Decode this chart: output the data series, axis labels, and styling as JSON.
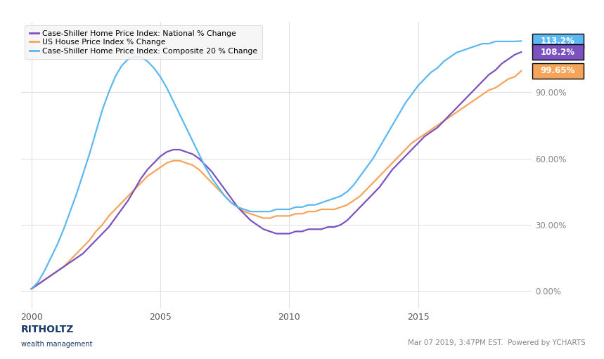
{
  "legend_entries": [
    "Case-Shiller Home Price Index: National % Change",
    "US House Price Index % Change",
    "Case-Shiller Home Price Index: Composite 20 % Change"
  ],
  "line_colors": [
    "#7B52BF",
    "#F5A55A",
    "#5BB8F0"
  ],
  "end_labels": [
    "113.2%",
    "108.2%",
    "99.65%"
  ],
  "end_label_colors": [
    "#5BB8F0",
    "#7B52BF",
    "#F5A55A"
  ],
  "ytick_labels": [
    "0.00%",
    "30.00%",
    "60.00%",
    "90.00%"
  ],
  "ytick_values": [
    0,
    30,
    60,
    90
  ],
  "xlim": [
    1999.6,
    2019.4
  ],
  "ylim": [
    -8,
    122
  ],
  "background_color": "#ffffff",
  "grid_color": "#e0e0e0",
  "footer_right": "Mar 07 2019, 3:47PM EST.  Powered by YCHARTS",
  "national_x": [
    2000.0,
    2000.25,
    2000.5,
    2000.75,
    2001.0,
    2001.25,
    2001.5,
    2001.75,
    2002.0,
    2002.25,
    2002.5,
    2002.75,
    2003.0,
    2003.25,
    2003.5,
    2003.75,
    2004.0,
    2004.25,
    2004.5,
    2004.75,
    2005.0,
    2005.25,
    2005.5,
    2005.75,
    2006.0,
    2006.25,
    2006.5,
    2006.75,
    2007.0,
    2007.25,
    2007.5,
    2007.75,
    2008.0,
    2008.25,
    2008.5,
    2008.75,
    2009.0,
    2009.25,
    2009.5,
    2009.75,
    2010.0,
    2010.25,
    2010.5,
    2010.75,
    2011.0,
    2011.25,
    2011.5,
    2011.75,
    2012.0,
    2012.25,
    2012.5,
    2012.75,
    2013.0,
    2013.25,
    2013.5,
    2013.75,
    2014.0,
    2014.25,
    2014.5,
    2014.75,
    2015.0,
    2015.25,
    2015.5,
    2015.75,
    2016.0,
    2016.25,
    2016.5,
    2016.75,
    2017.0,
    2017.25,
    2017.5,
    2017.75,
    2018.0,
    2018.25,
    2018.5,
    2018.75,
    2019.0
  ],
  "national_y": [
    1,
    3,
    5,
    7,
    9,
    11,
    13,
    15,
    17,
    20,
    23,
    26,
    29,
    33,
    37,
    41,
    46,
    51,
    55,
    58,
    61,
    63,
    64,
    64,
    63,
    62,
    60,
    57,
    54,
    50,
    46,
    42,
    38,
    35,
    32,
    30,
    28,
    27,
    26,
    26,
    26,
    27,
    27,
    28,
    28,
    28,
    29,
    29,
    30,
    32,
    35,
    38,
    41,
    44,
    47,
    51,
    55,
    58,
    61,
    64,
    67,
    70,
    72,
    74,
    77,
    80,
    83,
    86,
    89,
    92,
    95,
    98,
    100,
    103,
    105,
    107,
    108.2
  ],
  "composite20_x": [
    2000.0,
    2000.25,
    2000.5,
    2000.75,
    2001.0,
    2001.25,
    2001.5,
    2001.75,
    2002.0,
    2002.25,
    2002.5,
    2002.75,
    2003.0,
    2003.25,
    2003.5,
    2003.75,
    2004.0,
    2004.25,
    2004.5,
    2004.75,
    2005.0,
    2005.25,
    2005.5,
    2005.75,
    2006.0,
    2006.25,
    2006.5,
    2006.75,
    2007.0,
    2007.25,
    2007.5,
    2007.75,
    2008.0,
    2008.25,
    2008.5,
    2008.75,
    2009.0,
    2009.25,
    2009.5,
    2009.75,
    2010.0,
    2010.25,
    2010.5,
    2010.75,
    2011.0,
    2011.25,
    2011.5,
    2011.75,
    2012.0,
    2012.25,
    2012.5,
    2012.75,
    2013.0,
    2013.25,
    2013.5,
    2013.75,
    2014.0,
    2014.25,
    2014.5,
    2014.75,
    2015.0,
    2015.25,
    2015.5,
    2015.75,
    2016.0,
    2016.25,
    2016.5,
    2016.75,
    2017.0,
    2017.25,
    2017.5,
    2017.75,
    2018.0,
    2018.25,
    2018.5,
    2018.75,
    2019.0
  ],
  "composite20_y": [
    1,
    4,
    9,
    15,
    21,
    28,
    36,
    44,
    53,
    62,
    72,
    82,
    90,
    97,
    102,
    105,
    106,
    106,
    104,
    101,
    97,
    92,
    86,
    80,
    74,
    68,
    62,
    56,
    51,
    47,
    43,
    40,
    38,
    37,
    36,
    36,
    36,
    36,
    37,
    37,
    37,
    38,
    38,
    39,
    39,
    40,
    41,
    42,
    43,
    45,
    48,
    52,
    56,
    60,
    65,
    70,
    75,
    80,
    85,
    89,
    93,
    96,
    99,
    101,
    104,
    106,
    108,
    109,
    110,
    111,
    112,
    112,
    113,
    113,
    113,
    113,
    113.2
  ],
  "ushpi_x": [
    2000.0,
    2000.25,
    2000.5,
    2000.75,
    2001.0,
    2001.25,
    2001.5,
    2001.75,
    2002.0,
    2002.25,
    2002.5,
    2002.75,
    2003.0,
    2003.25,
    2003.5,
    2003.75,
    2004.0,
    2004.25,
    2004.5,
    2004.75,
    2005.0,
    2005.25,
    2005.5,
    2005.75,
    2006.0,
    2006.25,
    2006.5,
    2006.75,
    2007.0,
    2007.25,
    2007.5,
    2007.75,
    2008.0,
    2008.25,
    2008.5,
    2008.75,
    2009.0,
    2009.25,
    2009.5,
    2009.75,
    2010.0,
    2010.25,
    2010.5,
    2010.75,
    2011.0,
    2011.25,
    2011.5,
    2011.75,
    2012.0,
    2012.25,
    2012.5,
    2012.75,
    2013.0,
    2013.25,
    2013.5,
    2013.75,
    2014.0,
    2014.25,
    2014.5,
    2014.75,
    2015.0,
    2015.25,
    2015.5,
    2015.75,
    2016.0,
    2016.25,
    2016.5,
    2016.75,
    2017.0,
    2017.25,
    2017.5,
    2017.75,
    2018.0,
    2018.25,
    2018.5,
    2018.75,
    2019.0
  ],
  "ushpi_y": [
    1,
    3,
    5,
    7,
    9,
    11,
    14,
    17,
    20,
    23,
    27,
    30,
    34,
    37,
    40,
    43,
    46,
    49,
    52,
    54,
    56,
    58,
    59,
    59,
    58,
    57,
    55,
    52,
    49,
    46,
    43,
    40,
    38,
    36,
    35,
    34,
    33,
    33,
    34,
    34,
    34,
    35,
    35,
    36,
    36,
    37,
    37,
    37,
    38,
    39,
    41,
    43,
    46,
    49,
    52,
    55,
    58,
    61,
    64,
    67,
    69,
    71,
    73,
    75,
    77,
    79,
    81,
    83,
    85,
    87,
    89,
    91,
    92,
    94,
    96,
    97,
    99.65
  ]
}
